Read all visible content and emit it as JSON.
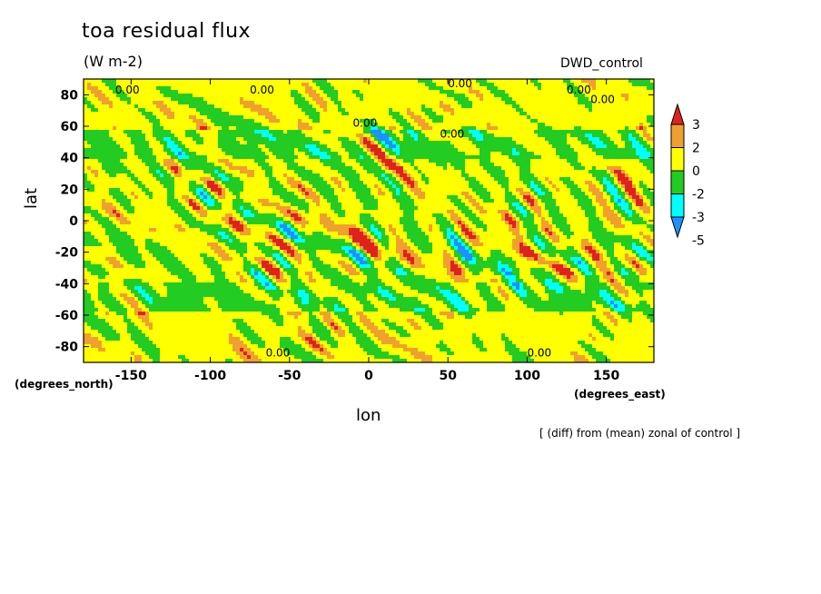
{
  "header": {
    "title": "toa residual flux",
    "units": "(W m-2)",
    "dataset": "DWD_control"
  },
  "axes": {
    "ylabel": "lat",
    "yunit": "(degrees_north)",
    "xlabel": "lon",
    "xunit": "(degrees_east)"
  },
  "note": "[ (diff) from (mean) zonal of control ]",
  "chart_data": {
    "type": "heatmap",
    "title": "toa residual flux",
    "subtitle": "(W m-2)",
    "xlabel": "lon",
    "ylabel": "lat",
    "xlim": [
      -180,
      180
    ],
    "ylim": [
      -90,
      90
    ],
    "x_ticks": [
      -150,
      -100,
      -50,
      0,
      50,
      100,
      150
    ],
    "y_ticks": [
      80,
      60,
      40,
      20,
      0,
      -20,
      -40,
      -60,
      -80
    ],
    "contour_label": "0.00",
    "colorbar": {
      "levels": [
        "3",
        "2",
        "0",
        "-2",
        "-3",
        "-5"
      ],
      "colors": [
        "#e0221e",
        "#f0a030",
        "#ffff00",
        "#22cc22",
        "#00ffff",
        "#1e90ff"
      ]
    },
    "legend": "right"
  }
}
